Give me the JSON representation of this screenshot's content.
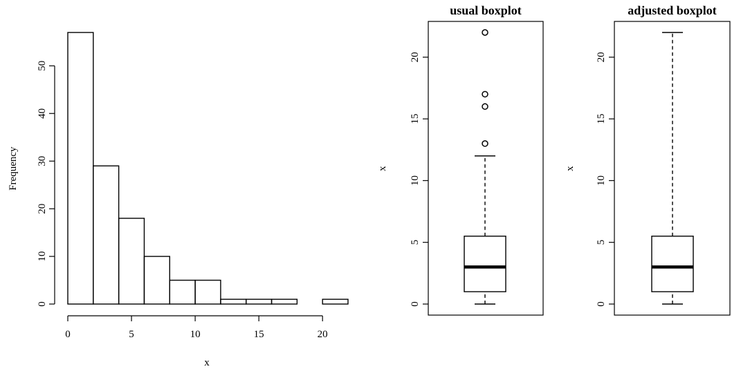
{
  "chart_data": [
    {
      "type": "bar",
      "subtype": "histogram",
      "title": "",
      "xlabel": "x",
      "ylabel": "Frequency",
      "bins": [
        [
          0,
          2
        ],
        [
          2,
          4
        ],
        [
          4,
          6
        ],
        [
          6,
          8
        ],
        [
          8,
          10
        ],
        [
          10,
          12
        ],
        [
          12,
          14
        ],
        [
          14,
          16
        ],
        [
          16,
          18
        ],
        [
          18,
          20
        ],
        [
          20,
          22
        ]
      ],
      "values": [
        57,
        29,
        18,
        10,
        5,
        5,
        1,
        1,
        1,
        0,
        1
      ],
      "xlim": [
        0,
        22
      ],
      "ylim": [
        0,
        57
      ],
      "xticks": [
        0,
        5,
        10,
        15,
        20
      ],
      "yticks": [
        0,
        10,
        20,
        30,
        40,
        50
      ],
      "grid": false
    },
    {
      "type": "boxplot",
      "title": "usual boxplot",
      "ylabel": "x",
      "ylim": [
        0,
        22
      ],
      "yticks": [
        0,
        5,
        10,
        15,
        20
      ],
      "whisker_low": 0,
      "q1": 1,
      "median": 3,
      "q3": 5.5,
      "whisker_high": 12,
      "outliers": [
        13,
        16,
        17,
        22
      ],
      "grid": false
    },
    {
      "type": "boxplot",
      "title": "adjusted boxplot",
      "ylabel": "x",
      "ylim": [
        0,
        22
      ],
      "yticks": [
        0,
        5,
        10,
        15,
        20
      ],
      "whisker_low": 0,
      "q1": 1,
      "median": 3,
      "q3": 5.5,
      "whisker_high": 22,
      "outliers": [],
      "grid": false
    }
  ]
}
